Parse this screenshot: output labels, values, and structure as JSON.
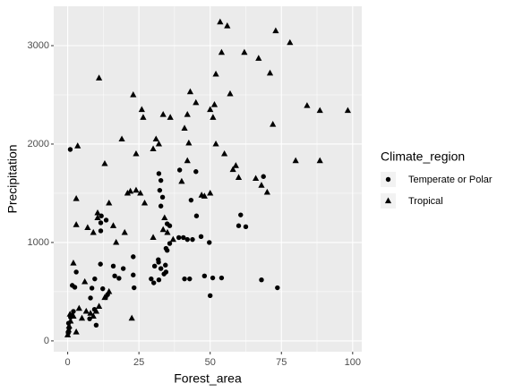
{
  "chart_data": {
    "type": "scatter",
    "x_label": "Forest_area",
    "y_label": "Precipitation",
    "xlim": [
      -4.9,
      103.2
    ],
    "ylim": [
      -110,
      3400
    ],
    "xticks": [
      0,
      25,
      50,
      75,
      100
    ],
    "yticks": [
      0,
      1000,
      2000,
      3000
    ],
    "grid": true,
    "minor_grid": true,
    "legend_position": "right",
    "legend_title": "Climate_region",
    "series": [
      {
        "name": "Temperate or Polar",
        "color": "#000000",
        "shape": "circle",
        "x": [
          0.9,
          1.6,
          2.5,
          3,
          0.3,
          1,
          1.5,
          0.5,
          2,
          0.2,
          8.5,
          8,
          9.5,
          11.5,
          12.3,
          11.6,
          11.6,
          11.8,
          13.5,
          16,
          16.5,
          18,
          19.5,
          23,
          23.3,
          14,
          13.3,
          9.4,
          10,
          7.7,
          23,
          29.3,
          30.2,
          30.5,
          31.8,
          32.7,
          32,
          33.8,
          34.5,
          34.9,
          34.3,
          35.8,
          31.9,
          32,
          32.7,
          32.3,
          33.3,
          32.7,
          39.3,
          34.9,
          35.8,
          34.5,
          39,
          40.6,
          41,
          42.8,
          43.8,
          42,
          43.3,
          45.2,
          46.8,
          49.7,
          50,
          54,
          50.9,
          60,
          60.7,
          62.5,
          68.7,
          68,
          73.6,
          48,
          45
        ],
        "values": [
          1945,
          564,
          545,
          700,
          180,
          240,
          260,
          130,
          300,
          80,
          536,
          436,
          630,
          780,
          530,
          1118,
          1200,
          1270,
          1227,
          760,
          660,
          636,
          735,
          670,
          540,
          470,
          440,
          320,
          160,
          225,
          855,
          630,
          590,
          760,
          825,
          735,
          620,
          680,
          700,
          920,
          770,
          990,
          800,
          1700,
          1630,
          1530,
          1460,
          1370,
          1736,
          1190,
          1170,
          940,
          1050,
          1050,
          630,
          630,
          1030,
          1030,
          1430,
          1270,
          1060,
          1000,
          460,
          640,
          640,
          1170,
          1280,
          1160,
          1670,
          620,
          540,
          660,
          1720
        ]
      },
      {
        "name": "Tropical",
        "color": "#000000",
        "shape": "triangle",
        "x": [
          0,
          0.3,
          0.5,
          1,
          2,
          0.8,
          3,
          4,
          5,
          6.5,
          8,
          9,
          10,
          11,
          13,
          14.5,
          2,
          3,
          3,
          3.5,
          6,
          7,
          9,
          10.5,
          10.5,
          11,
          13,
          14.5,
          16,
          17,
          19,
          20,
          21,
          22,
          22.5,
          23,
          24,
          25.5,
          27,
          26,
          26.5,
          24,
          30,
          31,
          32,
          33.5,
          34,
          35,
          33.5,
          36,
          40,
          41,
          42,
          42.5,
          43,
          42,
          45,
          47,
          48,
          50,
          50,
          51,
          51.5,
          52,
          52,
          53.5,
          54,
          56,
          57,
          58,
          59,
          60,
          62,
          66,
          67,
          68,
          70,
          71,
          72,
          73,
          78,
          80,
          84,
          88.5,
          88.5,
          98.3,
          55,
          37,
          30
        ],
        "values": [
          60,
          110,
          150,
          200,
          250,
          270,
          90,
          330,
          230,
          300,
          280,
          250,
          300,
          350,
          440,
          500,
          790,
          1445,
          1180,
          1980,
          600,
          1150,
          1100,
          1250,
          1300,
          2670,
          1800,
          1400,
          1170,
          1000,
          2050,
          1100,
          1500,
          1520,
          230,
          2500,
          1530,
          1500,
          1400,
          2350,
          2270,
          1900,
          1950,
          2050,
          2000,
          1130,
          1250,
          1100,
          2300,
          2270,
          1620,
          2160,
          1830,
          2010,
          2530,
          2300,
          2420,
          1480,
          1470,
          1500,
          2350,
          2270,
          2400,
          2710,
          2000,
          3240,
          2930,
          3200,
          2510,
          1740,
          1780,
          1660,
          2930,
          1650,
          2870,
          1580,
          1510,
          2720,
          2200,
          3150,
          3030,
          1830,
          2390,
          2340,
          1830,
          2340,
          1900,
          1030,
          1050
        ]
      }
    ]
  }
}
